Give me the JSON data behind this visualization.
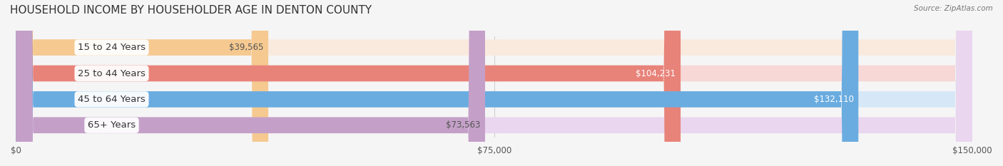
{
  "title": "HOUSEHOLD INCOME BY HOUSEHOLDER AGE IN DENTON COUNTY",
  "source": "Source: ZipAtlas.com",
  "categories": [
    "15 to 24 Years",
    "25 to 44 Years",
    "45 to 64 Years",
    "65+ Years"
  ],
  "values": [
    39565,
    104231,
    132110,
    73563
  ],
  "bar_colors": [
    "#f5c990",
    "#e8837a",
    "#6aace0",
    "#c4a0c8"
  ],
  "bar_bg_colors": [
    "#faeade",
    "#f7d8d6",
    "#d6e8f7",
    "#ead6ee"
  ],
  "label_colors": [
    "#555555",
    "#ffffff",
    "#ffffff",
    "#555555"
  ],
  "value_labels": [
    "$39,565",
    "$104,231",
    "$132,110",
    "$73,563"
  ],
  "xlim": [
    0,
    150000
  ],
  "xticks": [
    0,
    75000,
    150000
  ],
  "xtick_labels": [
    "$0",
    "$75,000",
    "$150,000"
  ],
  "figsize": [
    14.06,
    2.33
  ],
  "dpi": 100,
  "bg_color": "#f5f5f5",
  "bar_height": 0.62,
  "title_fontsize": 11,
  "label_fontsize": 9.5,
  "value_fontsize": 8.5,
  "tick_fontsize": 8.5
}
